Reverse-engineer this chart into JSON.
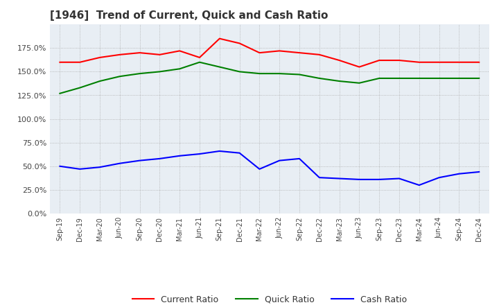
{
  "title": "[1946]  Trend of Current, Quick and Cash Ratio",
  "x_labels": [
    "Sep-19",
    "Dec-19",
    "Mar-20",
    "Jun-20",
    "Sep-20",
    "Dec-20",
    "Mar-21",
    "Jun-21",
    "Sep-21",
    "Dec-21",
    "Mar-22",
    "Jun-22",
    "Sep-22",
    "Dec-22",
    "Mar-23",
    "Jun-23",
    "Sep-23",
    "Dec-23",
    "Mar-24",
    "Jun-24",
    "Sep-24",
    "Dec-24"
  ],
  "current_ratio": [
    160,
    160,
    165,
    168,
    170,
    168,
    172,
    165,
    185,
    180,
    170,
    172,
    170,
    168,
    162,
    155,
    162,
    162,
    160,
    160,
    160,
    160
  ],
  "quick_ratio": [
    127,
    133,
    140,
    145,
    148,
    150,
    153,
    160,
    155,
    150,
    148,
    148,
    147,
    143,
    140,
    138,
    143,
    143,
    143,
    143,
    143,
    143
  ],
  "cash_ratio": [
    50,
    47,
    49,
    53,
    56,
    58,
    61,
    63,
    66,
    64,
    47,
    56,
    58,
    38,
    37,
    36,
    36,
    37,
    30,
    38,
    42,
    44
  ],
  "current_color": "#ff0000",
  "quick_color": "#008000",
  "cash_color": "#0000ff",
  "ylim": [
    0,
    200
  ],
  "yticks": [
    0,
    25,
    50,
    75,
    100,
    125,
    150,
    175
  ],
  "plot_bg_color": "#e8eef4",
  "figure_bg_color": "#ffffff",
  "grid_color": "#aaaaaa"
}
